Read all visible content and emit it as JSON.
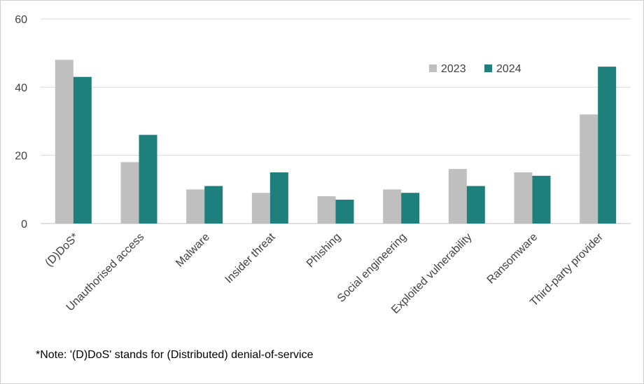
{
  "chart_data": {
    "type": "bar",
    "categories": [
      "(D)DoS*",
      "Unauthorised access",
      "Malware",
      "Insider threat",
      "Phishing",
      "Social engineering",
      "Exploited vulnerability",
      "Ransomware",
      "Third-party provider"
    ],
    "series": [
      {
        "name": "2023",
        "values": [
          48,
          18,
          10,
          9,
          8,
          10,
          16,
          15,
          32
        ],
        "color": "#bfbfbf"
      },
      {
        "name": "2024",
        "values": [
          43,
          26,
          11,
          15,
          7,
          9,
          11,
          14,
          46
        ],
        "color": "#1e7f7d"
      }
    ],
    "ylim": [
      0,
      60
    ],
    "yticks": [
      "0",
      "20",
      "40",
      "60"
    ],
    "grid": true,
    "legend": "top-right",
    "title": "",
    "xlabel": "",
    "ylabel": ""
  },
  "note": "*Note: '(D)DoS' stands for (Distributed)  denial-of-service"
}
